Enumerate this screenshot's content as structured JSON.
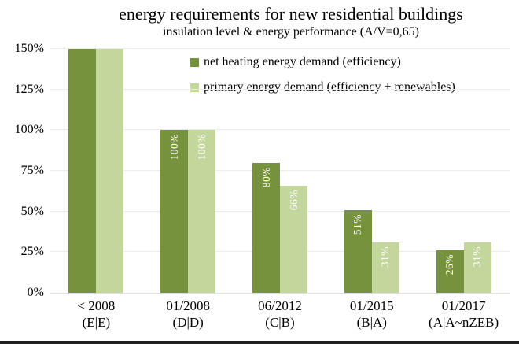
{
  "chart_data": {
    "type": "bar",
    "title": "energy requirements for new residential buildings",
    "subtitle": "insulation level & energy performance (A/V=0,65)",
    "categories": [
      {
        "period": "< 2008",
        "classes": "(E|E)"
      },
      {
        "period": "01/2008",
        "classes": "(D|D)"
      },
      {
        "period": "06/2012",
        "classes": "(C|B)"
      },
      {
        "period": "01/2015",
        "classes": "(B|A)"
      },
      {
        "period": "01/2017",
        "classes": "(A|A~nZEB)"
      }
    ],
    "series": [
      {
        "name": "net heating energy demand (efficiency)",
        "color": "#76923C",
        "values": [
          150,
          100,
          80,
          51,
          26
        ],
        "bar_labels": [
          "",
          "100%",
          "80%",
          "51%",
          "26%"
        ],
        "clipped_at_top": [
          true,
          false,
          false,
          false,
          false
        ]
      },
      {
        "name": "primary energy demand (efficiency + renewables)",
        "color": "#C3D69B",
        "values": [
          150,
          100,
          66,
          31,
          31
        ],
        "bar_labels": [
          "",
          "100%",
          "66%",
          "31%",
          "31%"
        ],
        "clipped_at_top": [
          true,
          false,
          false,
          false,
          false
        ]
      }
    ],
    "ylim": [
      0,
      150
    ],
    "yticks": [
      "0%",
      "25%",
      "50%",
      "75%",
      "100%",
      "125%",
      "150%"
    ],
    "grid": true,
    "legend_position": "top-inside",
    "bar_label_color": "#FFFFFF",
    "gridline_color": "#ECECEC"
  }
}
